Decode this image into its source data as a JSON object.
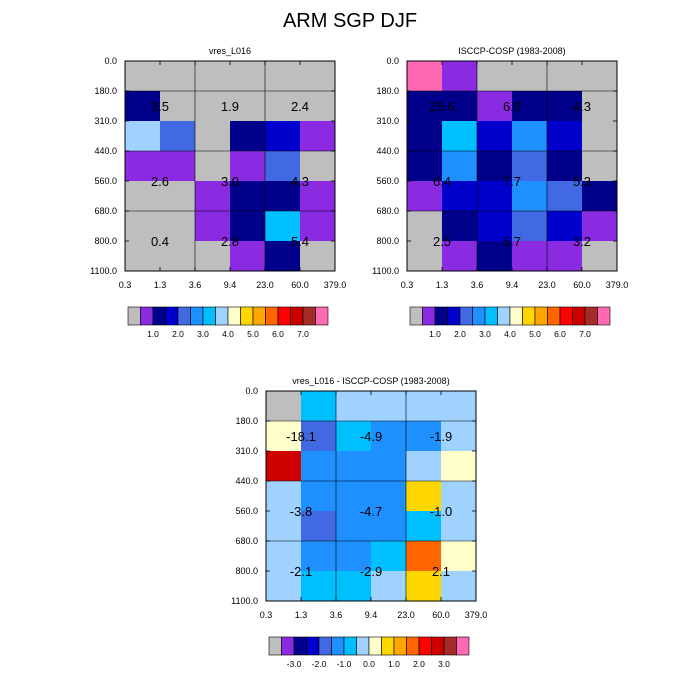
{
  "title": "ARM SGP DJF",
  "chart_data": [
    {
      "type": "heatmap",
      "title": "vres_L016",
      "xlabel": "",
      "ylabel": "",
      "x_ticks": [
        "0.3",
        "1.3",
        "3.6",
        "9.4",
        "23.0",
        "60.0",
        "379.0"
      ],
      "y_ticks": [
        "0.0",
        "180.0",
        "310.0",
        "440.0",
        "560.0",
        "680.0",
        "800.0",
        "1100.0"
      ],
      "colorbar_labels": [
        "1.0",
        "2.0",
        "3.0",
        "4.0",
        "5.0",
        "6.0",
        "7.0"
      ],
      "colorbar_colors": [
        "#bebebe",
        "#8a2be2",
        "#00008b",
        "#0000cd",
        "#4169e1",
        "#1e90ff",
        "#00bfff",
        "#a0d2ff",
        "#ffffcc",
        "#ffd700",
        "#ffa500",
        "#ff6600",
        "#ff0000",
        "#cd0000",
        "#a52a2a",
        "#ff69b4"
      ],
      "cell_colors": [
        [
          "#bebebe",
          "#bebebe",
          "#bebebe",
          "#bebebe",
          "#bebebe",
          "#bebebe"
        ],
        [
          "#00008b",
          "#bebebe",
          "#bebebe",
          "#bebebe",
          "#bebebe",
          "#bebebe"
        ],
        [
          "#a0d2ff",
          "#4169e1",
          "#bebebe",
          "#00008b",
          "#0000cd",
          "#8a2be2"
        ],
        [
          "#8a2be2",
          "#8a2be2",
          "#bebebe",
          "#8a2be2",
          "#4169e1",
          "#bebebe"
        ],
        [
          "#bebebe",
          "#bebebe",
          "#8a2be2",
          "#00008b",
          "#00008b",
          "#8a2be2"
        ],
        [
          "#bebebe",
          "#bebebe",
          "#8a2be2",
          "#00008b",
          "#00bfff",
          "#8a2be2"
        ],
        [
          "#bebebe",
          "#bebebe",
          "#bebebe",
          "#8a2be2",
          "#00008b",
          "#bebebe"
        ]
      ],
      "block_values": [
        [
          "3.5",
          "1.9",
          "2.4"
        ],
        [
          "2.6",
          "3.0",
          "4.3"
        ],
        [
          "0.4",
          "2.8",
          "5.4"
        ]
      ]
    },
    {
      "type": "heatmap",
      "title": "ISCCP-COSP (1983-2008)",
      "xlabel": "",
      "ylabel": "",
      "x_ticks": [
        "0.3",
        "1.3",
        "3.6",
        "9.4",
        "23.0",
        "60.0",
        "379.0"
      ],
      "y_ticks": [
        "0.0",
        "180.0",
        "310.0",
        "440.0",
        "560.0",
        "680.0",
        "800.0",
        "1100.0"
      ],
      "colorbar_labels": [
        "1.0",
        "2.0",
        "3.0",
        "4.0",
        "5.0",
        "6.0",
        "7.0"
      ],
      "colorbar_colors": [
        "#bebebe",
        "#8a2be2",
        "#00008b",
        "#0000cd",
        "#4169e1",
        "#1e90ff",
        "#00bfff",
        "#a0d2ff",
        "#ffffcc",
        "#ffd700",
        "#ffa500",
        "#ff6600",
        "#ff0000",
        "#cd0000",
        "#a52a2a",
        "#ff69b4"
      ],
      "cell_colors": [
        [
          "#ff69b4",
          "#8a2be2",
          "#bebebe",
          "#bebebe",
          "#bebebe",
          "#bebebe"
        ],
        [
          "#00008b",
          "#00008b",
          "#8a2be2",
          "#00008b",
          "#00008b",
          "#bebebe"
        ],
        [
          "#00008b",
          "#00bfff",
          "#0000cd",
          "#1e90ff",
          "#0000cd",
          "#bebebe"
        ],
        [
          "#00008b",
          "#1e90ff",
          "#00008b",
          "#4169e1",
          "#00008b",
          "#bebebe"
        ],
        [
          "#8a2be2",
          "#0000cd",
          "#0000cd",
          "#1e90ff",
          "#4169e1",
          "#00008b"
        ],
        [
          "#bebebe",
          "#00008b",
          "#0000cd",
          "#4169e1",
          "#0000cd",
          "#8a2be2"
        ],
        [
          "#bebebe",
          "#8a2be2",
          "#00008b",
          "#8a2be2",
          "#8a2be2",
          "#bebebe"
        ]
      ],
      "block_values": [
        [
          "25.6",
          "6.8",
          "4.3"
        ],
        [
          "6.4",
          "7.7",
          "5.3"
        ],
        [
          "2.5",
          "5.7",
          "3.2"
        ]
      ]
    },
    {
      "type": "heatmap",
      "title": "vres_L016 - ISCCP-COSP (1983-2008)",
      "xlabel": "",
      "ylabel": "",
      "x_ticks": [
        "0.3",
        "1.3",
        "3.6",
        "9.4",
        "23.0",
        "60.0",
        "379.0"
      ],
      "y_ticks": [
        "0.0",
        "180.0",
        "310.0",
        "440.0",
        "560.0",
        "680.0",
        "800.0",
        "1100.0"
      ],
      "colorbar_labels": [
        "-3.0",
        "-2.0",
        "-1.0",
        "0.0",
        "1.0",
        "2.0",
        "3.0"
      ],
      "colorbar_colors": [
        "#bebebe",
        "#8a2be2",
        "#00008b",
        "#0000cd",
        "#4169e1",
        "#1e90ff",
        "#00bfff",
        "#a0d2ff",
        "#ffffcc",
        "#ffd700",
        "#ffa500",
        "#ff6600",
        "#ff0000",
        "#cd0000",
        "#a52a2a",
        "#ff69b4"
      ],
      "cell_colors": [
        [
          "#bebebe",
          "#00bfff",
          "#a0d2ff",
          "#a0d2ff",
          "#a0d2ff",
          "#a0d2ff"
        ],
        [
          "#ffffcc",
          "#4169e1",
          "#00bfff",
          "#1e90ff",
          "#1e90ff",
          "#a0d2ff"
        ],
        [
          "#cd0000",
          "#1e90ff",
          "#1e90ff",
          "#1e90ff",
          "#a0d2ff",
          "#ffffcc"
        ],
        [
          "#a0d2ff",
          "#1e90ff",
          "#1e90ff",
          "#1e90ff",
          "#ffd700",
          "#a0d2ff"
        ],
        [
          "#a0d2ff",
          "#4169e1",
          "#1e90ff",
          "#1e90ff",
          "#00bfff",
          "#a0d2ff"
        ],
        [
          "#a0d2ff",
          "#1e90ff",
          "#1e90ff",
          "#00bfff",
          "#ff6600",
          "#ffffcc"
        ],
        [
          "#a0d2ff",
          "#00bfff",
          "#00bfff",
          "#a0d2ff",
          "#ffd700",
          "#a0d2ff"
        ]
      ],
      "block_values": [
        [
          "-18.1",
          "-4.9",
          "-1.9"
        ],
        [
          "-3.8",
          "-4.7",
          "-1.0"
        ],
        [
          "-2.1",
          "-2.9",
          "2.1"
        ]
      ]
    }
  ]
}
